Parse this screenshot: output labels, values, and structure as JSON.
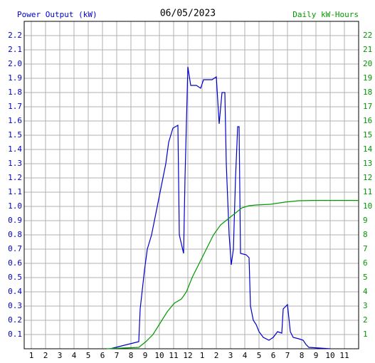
{
  "chart_data": {
    "type": "line",
    "title": "06/05/2023",
    "y_label": "Power Output (kW)",
    "y2_label": "Daily kW-Hours",
    "xlim": [
      0.5,
      24
    ],
    "xticks": [
      1,
      2,
      3,
      4,
      5,
      6,
      7,
      8,
      9,
      10,
      11,
      12,
      {
        "value": 13,
        "label": "1"
      },
      {
        "value": 14,
        "label": "2"
      },
      {
        "value": 15,
        "label": "3"
      },
      {
        "value": 16,
        "label": "4"
      },
      {
        "value": 17,
        "label": "5"
      },
      {
        "value": 18,
        "label": "6"
      },
      {
        "value": 19,
        "label": "7"
      },
      {
        "value": 20,
        "label": "8"
      },
      {
        "value": 21,
        "label": "9"
      },
      {
        "value": 22,
        "label": "10"
      },
      {
        "value": 23,
        "label": "11"
      }
    ],
    "ylim": [
      0,
      2.3
    ],
    "yticks": [
      0.1,
      0.2,
      0.3,
      0.4,
      0.5,
      0.6,
      0.7,
      0.8,
      0.9,
      {
        "value": 1,
        "label": "1.0"
      },
      1.1,
      1.2,
      1.3,
      1.4,
      1.5,
      1.6,
      1.7,
      1.8,
      1.9,
      {
        "value": 2,
        "label": "2.0"
      },
      2.1,
      2.2
    ],
    "y2lim": [
      0,
      23
    ],
    "y2ticks": [
      1,
      2,
      3,
      4,
      5,
      6,
      7,
      8,
      9,
      10,
      11,
      12,
      13,
      14,
      15,
      16,
      17,
      18,
      19,
      20,
      21,
      22
    ],
    "grid": true,
    "series": [
      {
        "name": "Power Output (kW)",
        "color": "#0000cc",
        "x": [
          6.55,
          8.55,
          8.65,
          8.95,
          9.15,
          9.45,
          9.65,
          9.85,
          10.05,
          10.25,
          10.45,
          10.65,
          10.8,
          10.95,
          11.3,
          11.4,
          11.7,
          11.8,
          12.0,
          12.2,
          12.6,
          12.9,
          13.1,
          13.7,
          14.0,
          14.2,
          14.4,
          14.6,
          14.7,
          14.9,
          15.05,
          15.2,
          15.35,
          15.5,
          15.6,
          15.7,
          16.1,
          16.3,
          16.4,
          16.6,
          16.8,
          17.0,
          17.3,
          17.7,
          18.0,
          18.3,
          18.6,
          18.7,
          19.0,
          19.2,
          19.4,
          19.8,
          20.1,
          20.3,
          20.5,
          22.0
        ],
        "values": [
          0,
          0.05,
          0.28,
          0.55,
          0.7,
          0.8,
          0.9,
          1.0,
          1.1,
          1.2,
          1.3,
          1.45,
          1.5,
          1.55,
          1.57,
          0.8,
          0.67,
          1.2,
          1.98,
          1.85,
          1.85,
          1.83,
          1.89,
          1.89,
          1.91,
          1.58,
          1.8,
          1.8,
          1.3,
          0.8,
          0.59,
          0.7,
          1.2,
          1.56,
          1.56,
          0.67,
          0.66,
          0.64,
          0.3,
          0.2,
          0.17,
          0.12,
          0.08,
          0.06,
          0.08,
          0.12,
          0.11,
          0.28,
          0.31,
          0.12,
          0.08,
          0.07,
          0.06,
          0.03,
          0.01,
          0
        ]
      },
      {
        "name": "Daily kW-Hours",
        "color": "#009900",
        "axis": "y2",
        "x": [
          6.3,
          8.55,
          9.05,
          9.55,
          10.05,
          10.55,
          11.05,
          11.55,
          11.9,
          12.3,
          12.8,
          13.3,
          13.8,
          14.3,
          14.8,
          15.3,
          15.8,
          16.3,
          16.8,
          17.8,
          18.8,
          19.8,
          20.8,
          24
        ],
        "values": [
          0,
          0.1,
          0.5,
          1,
          1.8,
          2.6,
          3.2,
          3.5,
          4,
          5,
          6,
          7,
          8,
          8.7,
          9.1,
          9.5,
          9.9,
          10.05,
          10.1,
          10.15,
          10.3,
          10.4,
          10.42,
          10.42
        ]
      }
    ]
  }
}
